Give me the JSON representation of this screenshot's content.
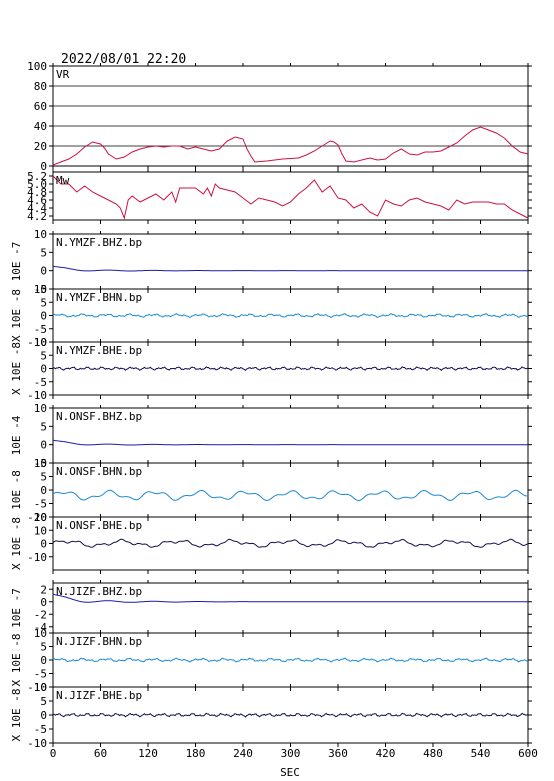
{
  "header": {
    "timestamp": "2022/08/01 22:20"
  },
  "colors": {
    "frame": "#000000",
    "vr_mw": "#cc1144",
    "bhz": "#1a1aa8",
    "bhn": "#1a8ad4",
    "bhe": "#101050"
  },
  "chart_data": {
    "type": "line",
    "xlabel": "SEC",
    "xlim": [
      0,
      600
    ],
    "xticks": [
      0,
      60,
      120,
      180,
      240,
      300,
      360,
      420,
      480,
      540,
      600
    ],
    "panels": [
      {
        "label": "VR",
        "ylabel": "",
        "color": "vr_mw",
        "ylim": [
          0,
          100
        ],
        "yticks": [
          0,
          20,
          40,
          60,
          80,
          100
        ],
        "grid": true,
        "points": [
          [
            0,
            1
          ],
          [
            10,
            4
          ],
          [
            20,
            7
          ],
          [
            30,
            12
          ],
          [
            40,
            19
          ],
          [
            50,
            24
          ],
          [
            60,
            22
          ],
          [
            65,
            18
          ],
          [
            70,
            12
          ],
          [
            80,
            7
          ],
          [
            90,
            9
          ],
          [
            100,
            14
          ],
          [
            110,
            17
          ],
          [
            120,
            19
          ],
          [
            130,
            20
          ],
          [
            140,
            19
          ],
          [
            150,
            20
          ],
          [
            160,
            20
          ],
          [
            170,
            17
          ],
          [
            180,
            19
          ],
          [
            190,
            17
          ],
          [
            200,
            15
          ],
          [
            210,
            17
          ],
          [
            220,
            25
          ],
          [
            230,
            29
          ],
          [
            240,
            27
          ],
          [
            245,
            17
          ],
          [
            250,
            10
          ],
          [
            255,
            4
          ],
          [
            270,
            5
          ],
          [
            290,
            7
          ],
          [
            310,
            8
          ],
          [
            320,
            11
          ],
          [
            330,
            15
          ],
          [
            340,
            20
          ],
          [
            350,
            25
          ],
          [
            355,
            24
          ],
          [
            360,
            21
          ],
          [
            365,
            12
          ],
          [
            370,
            5
          ],
          [
            380,
            4
          ],
          [
            400,
            8
          ],
          [
            410,
            6
          ],
          [
            420,
            7
          ],
          [
            430,
            13
          ],
          [
            440,
            17
          ],
          [
            450,
            12
          ],
          [
            460,
            11
          ],
          [
            470,
            14
          ],
          [
            480,
            14
          ],
          [
            490,
            15
          ],
          [
            500,
            19
          ],
          [
            510,
            23
          ],
          [
            520,
            30
          ],
          [
            530,
            36
          ],
          [
            540,
            39
          ],
          [
            550,
            36
          ],
          [
            560,
            33
          ],
          [
            570,
            28
          ],
          [
            580,
            20
          ],
          [
            590,
            14
          ],
          [
            600,
            12
          ]
        ]
      },
      {
        "label": "Mw",
        "ylabel": "",
        "color": "vr_mw",
        "ylim": [
          4.1,
          5.3
        ],
        "yticks": [
          4.2,
          4.4,
          4.6,
          4.8,
          5.0,
          5.2
        ],
        "ytick_labels": [
          "4.2",
          "4.4",
          "4.6",
          "4.8",
          "5.0",
          "5.2"
        ],
        "points": [
          [
            0,
            5.2
          ],
          [
            10,
            5.0
          ],
          [
            20,
            5.0
          ],
          [
            30,
            4.8
          ],
          [
            40,
            4.95
          ],
          [
            50,
            4.8
          ],
          [
            60,
            4.7
          ],
          [
            70,
            4.6
          ],
          [
            80,
            4.5
          ],
          [
            85,
            4.4
          ],
          [
            90,
            4.15
          ],
          [
            95,
            4.6
          ],
          [
            100,
            4.7
          ],
          [
            110,
            4.55
          ],
          [
            120,
            4.65
          ],
          [
            130,
            4.75
          ],
          [
            140,
            4.6
          ],
          [
            150,
            4.8
          ],
          [
            155,
            4.55
          ],
          [
            160,
            4.9
          ],
          [
            170,
            4.9
          ],
          [
            180,
            4.9
          ],
          [
            190,
            4.75
          ],
          [
            195,
            4.9
          ],
          [
            200,
            4.7
          ],
          [
            205,
            5.0
          ],
          [
            210,
            4.9
          ],
          [
            220,
            4.85
          ],
          [
            230,
            4.8
          ],
          [
            240,
            4.65
          ],
          [
            250,
            4.5
          ],
          [
            260,
            4.65
          ],
          [
            270,
            4.6
          ],
          [
            280,
            4.55
          ],
          [
            290,
            4.45
          ],
          [
            300,
            4.55
          ],
          [
            310,
            4.75
          ],
          [
            320,
            4.9
          ],
          [
            330,
            5.1
          ],
          [
            340,
            4.8
          ],
          [
            350,
            4.95
          ],
          [
            360,
            4.65
          ],
          [
            370,
            4.6
          ],
          [
            380,
            4.4
          ],
          [
            390,
            4.5
          ],
          [
            400,
            4.3
          ],
          [
            410,
            4.2
          ],
          [
            420,
            4.6
          ],
          [
            430,
            4.5
          ],
          [
            440,
            4.45
          ],
          [
            450,
            4.6
          ],
          [
            460,
            4.65
          ],
          [
            470,
            4.55
          ],
          [
            480,
            4.5
          ],
          [
            490,
            4.45
          ],
          [
            500,
            4.35
          ],
          [
            510,
            4.6
          ],
          [
            520,
            4.5
          ],
          [
            530,
            4.55
          ],
          [
            540,
            4.55
          ],
          [
            550,
            4.55
          ],
          [
            560,
            4.5
          ],
          [
            570,
            4.5
          ],
          [
            580,
            4.35
          ],
          [
            590,
            4.25
          ],
          [
            600,
            4.15
          ]
        ]
      },
      {
        "label": "N.YMZF.BHZ.bp",
        "ylabel": "10E -7",
        "color": "bhz",
        "ylim": [
          -5,
          10
        ],
        "yticks": [
          -5,
          0,
          5,
          10
        ],
        "wave": "lowfreq"
      },
      {
        "label": "N.YMZF.BHN.bp",
        "ylabel": "X 10E -8",
        "color": "bhn",
        "ylim": [
          -10,
          10
        ],
        "yticks": [
          -10,
          -5,
          0,
          5,
          10
        ],
        "wave": "bhn"
      },
      {
        "label": "N.YMZF.BHE.bp",
        "ylabel": "X 10E -8",
        "color": "bhe",
        "ylim": [
          -10,
          10
        ],
        "yticks": [
          -10,
          -5,
          0,
          5,
          10
        ],
        "wave": "bhe"
      },
      {
        "label": "N.ONSF.BHZ.bp",
        "ylabel": "10E -4",
        "color": "bhz",
        "ylim": [
          -5,
          10
        ],
        "yticks": [
          -5,
          0,
          5,
          10
        ],
        "wave": "lowfreq"
      },
      {
        "label": "N.ONSF.BHN.bp",
        "ylabel": "10E -8",
        "color": "bhn",
        "ylim": [
          -10,
          10
        ],
        "yticks": [
          -10,
          -5,
          0,
          5,
          10
        ],
        "wave": "onsf_n"
      },
      {
        "label": "N.ONSF.BHE.bp",
        "ylabel": "X 10E -8",
        "color": "bhe",
        "ylim": [
          -20,
          20
        ],
        "yticks": [
          -10,
          0,
          10,
          20
        ],
        "wave": "onsf_e"
      },
      {
        "label": "N.JIZF.BHZ.bp",
        "ylabel": "10E -7",
        "color": "bhz",
        "ylim": [
          -5,
          3
        ],
        "yticks": [
          -4,
          -2,
          0,
          2
        ],
        "wave": "lowfreq"
      },
      {
        "label": "N.JIZF.BHN.bp",
        "ylabel": "X 10E -8",
        "color": "bhn",
        "ylim": [
          -10,
          10
        ],
        "yticks": [
          -10,
          -5,
          0,
          5,
          10
        ],
        "wave": "bhn"
      },
      {
        "label": "N.JIZF.BHE.bp",
        "ylabel": "X 10E -8",
        "color": "bhe",
        "ylim": [
          -10,
          10
        ],
        "yticks": [
          -10,
          -5,
          0,
          5,
          10
        ],
        "wave": "bhe"
      }
    ]
  }
}
